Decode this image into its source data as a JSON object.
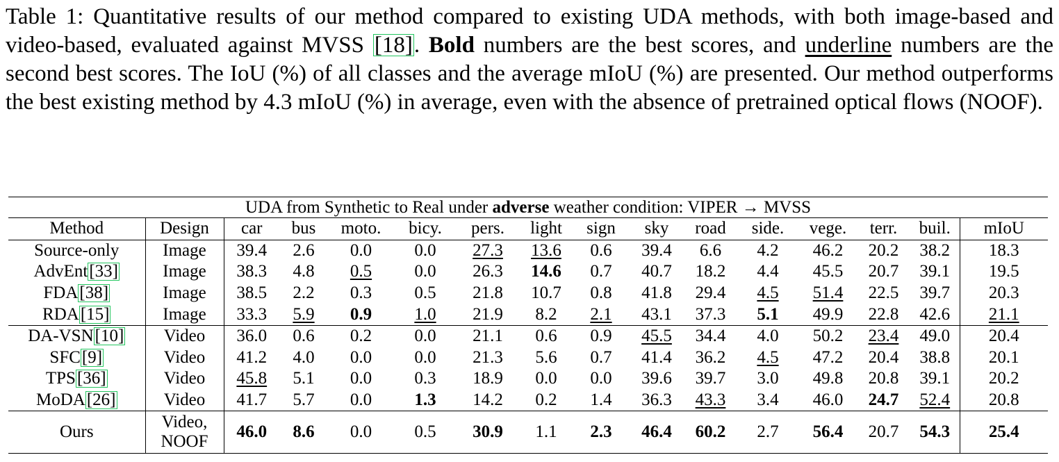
{
  "caption": {
    "part1": "Table 1: Quantitative results of our method compared to existing UDA methods, with both image-based and video-based, evaluated against MVSS ",
    "cite": "[18]",
    "part2": ".  ",
    "bold_word": "Bold",
    "part3": " numbers are the best scores, and ",
    "underline_word": "underline",
    "part4": " numbers are the second best scores. The IoU (%) of all classes and the average mIoU (%) are presented. Our method outperforms the best existing method by 4.3 mIoU (%) in average, even with the absence of pretrained optical flows (NOOF)."
  },
  "table": {
    "title_pre": "UDA from Synthetic to Real under ",
    "title_bold": "adverse",
    "title_post": " weather condition: VIPER → MVSS",
    "headers": [
      "Method",
      "Design",
      "car",
      "bus",
      "moto.",
      "bicy.",
      "pers.",
      "light",
      "sign",
      "sky",
      "road",
      "side.",
      "vege.",
      "terr.",
      "buil.",
      "mIoU"
    ],
    "rows": [
      {
        "name": "Source-only",
        "ref": "",
        "design": "Image",
        "vals": [
          "39.4",
          "2.6",
          "0.0",
          "0.0",
          "27.3",
          "13.6",
          "0.6",
          "39.4",
          "6.6",
          "4.2",
          "46.2",
          "20.2",
          "38.2",
          "18.3"
        ],
        "fmt": [
          "",
          "",
          "",
          "",
          "u",
          "u",
          "",
          "",
          "",
          "",
          "",
          "",
          "",
          ""
        ]
      },
      {
        "name": "AdvEnt",
        "ref": "[33]",
        "design": "Image",
        "vals": [
          "38.3",
          "4.8",
          "0.5",
          "0.0",
          "26.3",
          "14.6",
          "0.7",
          "40.7",
          "18.2",
          "4.4",
          "45.5",
          "20.7",
          "39.1",
          "19.5"
        ],
        "fmt": [
          "",
          "",
          "u",
          "",
          "",
          "b",
          "",
          "",
          "",
          "",
          "",
          "",
          "",
          ""
        ]
      },
      {
        "name": "FDA",
        "ref": "[38]",
        "design": "Image",
        "vals": [
          "38.5",
          "2.2",
          "0.3",
          "0.5",
          "21.8",
          "10.7",
          "0.8",
          "41.8",
          "29.4",
          "4.5",
          "51.4",
          "22.5",
          "39.7",
          "20.3"
        ],
        "fmt": [
          "",
          "",
          "",
          "",
          "",
          "",
          "",
          "",
          "",
          "u",
          "u",
          "",
          "",
          ""
        ]
      },
      {
        "name": "RDA",
        "ref": "[15]",
        "design": "Image",
        "vals": [
          "33.3",
          "5.9",
          "0.9",
          "1.0",
          "21.9",
          "8.2",
          "2.1",
          "43.1",
          "37.3",
          "5.1",
          "49.9",
          "22.8",
          "42.6",
          "21.1"
        ],
        "fmt": [
          "",
          "u",
          "b",
          "u",
          "",
          "",
          "u",
          "",
          "",
          "b",
          "",
          "",
          "",
          "u"
        ]
      },
      {
        "name": "DA-VSN",
        "ref": "[10]",
        "design": "Video",
        "vals": [
          "36.0",
          "0.6",
          "0.2",
          "0.0",
          "21.1",
          "0.6",
          "0.9",
          "45.5",
          "34.4",
          "4.0",
          "50.2",
          "23.4",
          "49.0",
          "20.4"
        ],
        "fmt": [
          "",
          "",
          "",
          "",
          "",
          "",
          "",
          "u",
          "",
          "",
          "",
          "u",
          "",
          ""
        ]
      },
      {
        "name": "SFC",
        "ref": "[9]",
        "design": "Video",
        "vals": [
          "41.2",
          "4.0",
          "0.0",
          "0.0",
          "21.3",
          "5.6",
          "0.7",
          "41.4",
          "36.2",
          "4.5",
          "47.2",
          "20.4",
          "38.8",
          "20.1"
        ],
        "fmt": [
          "",
          "",
          "",
          "",
          "",
          "",
          "",
          "",
          "",
          "u",
          "",
          "",
          "",
          ""
        ]
      },
      {
        "name": "TPS",
        "ref": "[36]",
        "design": "Video",
        "vals": [
          "45.8",
          "5.1",
          "0.0",
          "0.3",
          "18.9",
          "0.0",
          "0.0",
          "39.6",
          "39.7",
          "3.0",
          "49.8",
          "20.8",
          "39.1",
          "20.2"
        ],
        "fmt": [
          "u",
          "",
          "",
          "",
          "",
          "",
          "",
          "",
          "",
          "",
          "",
          "",
          "",
          ""
        ]
      },
      {
        "name": "MoDA",
        "ref": "[26]",
        "design": "Video",
        "vals": [
          "41.7",
          "5.7",
          "0.0",
          "1.3",
          "14.2",
          "0.2",
          "1.4",
          "36.3",
          "43.3",
          "3.4",
          "46.0",
          "24.7",
          "52.4",
          "20.8"
        ],
        "fmt": [
          "",
          "",
          "",
          "b",
          "",
          "",
          "",
          "",
          "u",
          "",
          "",
          "b",
          "u",
          ""
        ]
      }
    ],
    "ours": {
      "name": "Ours",
      "design_line1": "Video,",
      "design_line2": "NOOF",
      "vals": [
        "46.0",
        "8.6",
        "0.0",
        "0.5",
        "30.9",
        "1.1",
        "2.3",
        "46.4",
        "60.2",
        "2.7",
        "56.4",
        "20.7",
        "54.3",
        "25.4"
      ],
      "fmt": [
        "b",
        "b",
        "",
        "",
        "b",
        "",
        "b",
        "b",
        "b",
        "",
        "b",
        "",
        "b",
        "b"
      ]
    }
  }
}
